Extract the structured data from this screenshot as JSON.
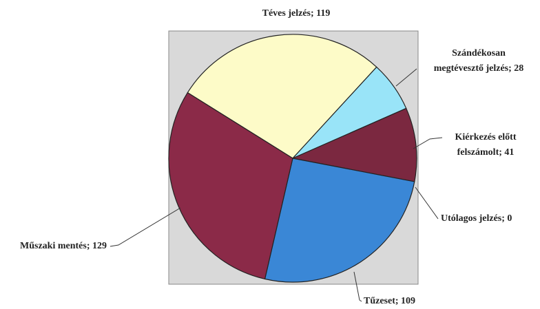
{
  "chart_data": {
    "type": "pie",
    "labels": [
      [
        "Téves jelzés; 119"
      ],
      [
        "Szándékosan",
        "megtévesztő jelzés; 28"
      ],
      [
        "Kiérkezés előtt",
        "felszámolt; 41"
      ],
      [
        "Utólagos jelzés; 0"
      ],
      [
        "Tűzeset; 109"
      ],
      [
        "Műszaki mentés; 129"
      ]
    ],
    "values": [
      119,
      28,
      41,
      0,
      109,
      129
    ],
    "colors": [
      "#fdfbc8",
      "#99e4f8",
      "#7b2840",
      "#cccccc",
      "#3a87d6",
      "#8b2a48"
    ]
  }
}
